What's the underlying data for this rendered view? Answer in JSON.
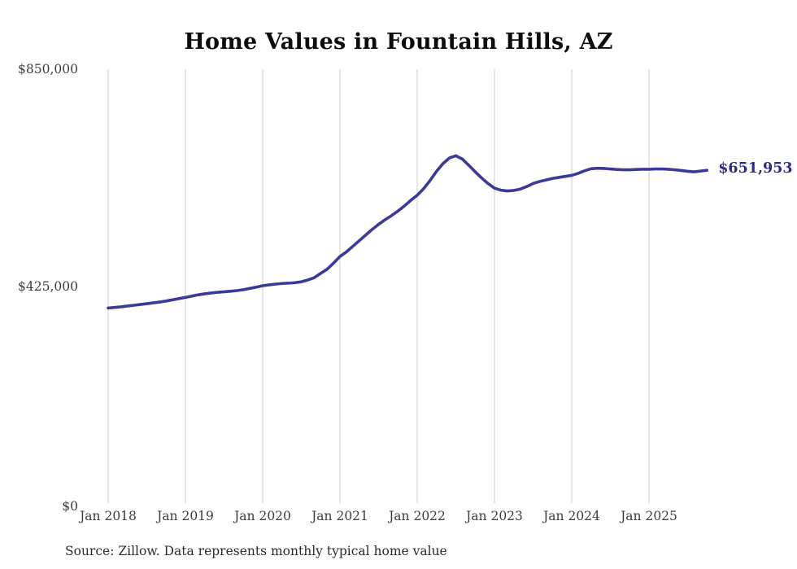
{
  "title": "Home Values in Fountain Hills, AZ",
  "source_note": "Source: Zillow. Data represents monthly typical home value",
  "colors": {
    "line": "#3b3a9a",
    "end_label": "#2d2a8e",
    "gridline": "#cccccc",
    "axis_text": "#3d3d3d",
    "title_text": "#0d0d0d",
    "background": "#ffffff"
  },
  "chart_data": {
    "type": "line",
    "title": "Home Values in Fountain Hills, AZ",
    "ylabel": "",
    "xlabel": "",
    "ylim": [
      0,
      850000
    ],
    "grid": "vertical-only",
    "legend": "none",
    "x_start_month": "Jan 2018",
    "x_end_month": "Oct 2025",
    "months_per_point": 1,
    "final_value": 651953,
    "final_value_label": "$651,953",
    "y_ticks": [
      {
        "value": 850000,
        "label": "$850,000"
      },
      {
        "value": 425000,
        "label": "$425,000"
      },
      {
        "value": 0,
        "label": "$0"
      }
    ],
    "x_ticks": [
      {
        "month_index": 0,
        "label": "Jan 2018"
      },
      {
        "month_index": 12,
        "label": "Jan 2019"
      },
      {
        "month_index": 24,
        "label": "Jan 2020"
      },
      {
        "month_index": 36,
        "label": "Jan 2021"
      },
      {
        "month_index": 48,
        "label": "Jan 2022"
      },
      {
        "month_index": 60,
        "label": "Jan 2023"
      },
      {
        "month_index": 72,
        "label": "Jan 2024"
      },
      {
        "month_index": 84,
        "label": "Jan 2025"
      }
    ],
    "series": [
      {
        "name": "Typical home value",
        "monthly_values": [
          382000,
          383200,
          384500,
          386000,
          387500,
          389000,
          390600,
          392200,
          393800,
          395800,
          398200,
          400600,
          403000,
          405500,
          408000,
          410000,
          411500,
          413000,
          414000,
          415000,
          416200,
          418000,
          420500,
          423000,
          425800,
          427500,
          429000,
          430200,
          430800,
          431800,
          433500,
          437000,
          441500,
          450000,
          458000,
          470000,
          483000,
          492000,
          503000,
          514000,
          525000,
          536000,
          546000,
          555000,
          563000,
          572000,
          582000,
          593000,
          603000,
          616000,
          632000,
          650000,
          665000,
          676000,
          680500,
          674000,
          662000,
          649000,
          637000,
          626000,
          617000,
          613000,
          611500,
          612500,
          615000,
          620000,
          626000,
          630000,
          633000,
          636000,
          638000,
          640000,
          642000,
          646000,
          651000,
          655000,
          656000,
          655500,
          654500,
          653500,
          653000,
          653000,
          653500,
          654000,
          654000,
          654500,
          654500,
          654000,
          653000,
          651500,
          650000,
          649000,
          650500,
          651953
        ]
      }
    ]
  }
}
